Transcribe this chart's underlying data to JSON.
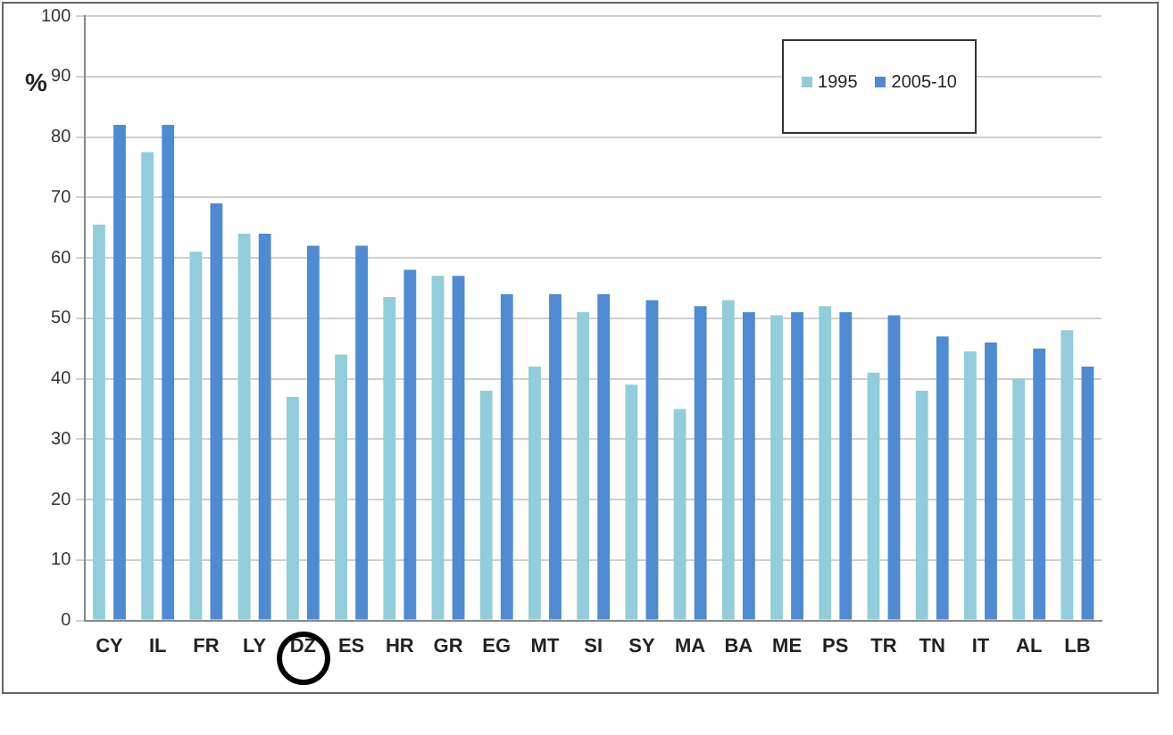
{
  "chart_data": {
    "type": "bar",
    "ylabel": "%",
    "categories": [
      "CY",
      "IL",
      "FR",
      "LY",
      "DZ",
      "ES",
      "HR",
      "GR",
      "EG",
      "MT",
      "SI",
      "SY",
      "MA",
      "BA",
      "ME",
      "PS",
      "TR",
      "TN",
      "IT",
      "AL",
      "LB"
    ],
    "series": [
      {
        "name": "1995",
        "color": "#92cddc",
        "values": [
          65.5,
          77.5,
          61,
          64,
          37,
          44,
          53.5,
          57,
          38,
          42,
          51,
          39,
          35,
          53,
          50.5,
          52,
          41,
          38,
          44.5,
          40,
          48
        ]
      },
      {
        "name": "2005-10",
        "color": "#4f8bd2",
        "values": [
          82,
          82,
          69,
          64,
          62,
          62,
          58,
          57,
          54,
          54,
          54,
          53,
          52,
          51,
          51,
          51,
          50.5,
          47,
          46,
          45,
          42
        ]
      }
    ],
    "ylim": [
      0,
      100
    ],
    "yticks": [
      0,
      10,
      20,
      30,
      40,
      50,
      60,
      70,
      80,
      90,
      100
    ],
    "grid": "y",
    "legend": "top right"
  }
}
